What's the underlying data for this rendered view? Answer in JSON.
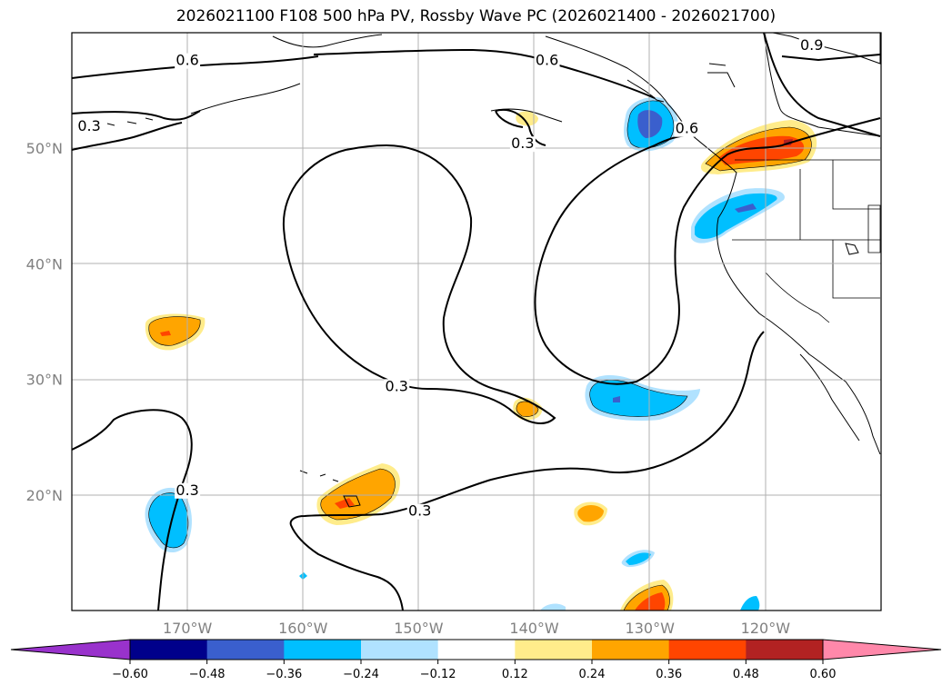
{
  "chart_data": {
    "type": "contour-map",
    "title": "2026021100 F108 500 hPa PV, Rossby Wave PC (2026021400 - 2026021700)",
    "map": {
      "lon_range": [
        -180,
        -110
      ],
      "lat_range": [
        10,
        60
      ],
      "lon_ticks": [
        -170,
        -160,
        -150,
        -140,
        -130,
        -120
      ],
      "lon_tick_labels": [
        "170°W",
        "160°W",
        "150°W",
        "140°W",
        "130°W",
        "120°W"
      ],
      "lat_ticks": [
        20,
        30,
        40,
        50
      ],
      "lat_tick_labels": [
        "20°N",
        "30°N",
        "40°N",
        "50°N"
      ],
      "grid": true
    },
    "contour_labels": [
      {
        "text": "0.6",
        "lon": -170.0,
        "lat": 57.2
      },
      {
        "text": "0.6",
        "lon": -138.9,
        "lat": 57.2
      },
      {
        "text": "0.9",
        "lon": -116.0,
        "lat": 58.5
      },
      {
        "text": "0.3",
        "lon": -178.5,
        "lat": 51.5
      },
      {
        "text": "0.3",
        "lon": -141.0,
        "lat": 50.0
      },
      {
        "text": "0.6",
        "lon": -126.8,
        "lat": 51.3
      },
      {
        "text": "0.3",
        "lon": -151.9,
        "lat": 29.0
      },
      {
        "text": "0.3",
        "lon": -149.9,
        "lat": 18.2
      },
      {
        "text": "0.3",
        "lon": -170.0,
        "lat": 20.0
      }
    ],
    "colorbar": {
      "levels": [
        -0.6,
        -0.48,
        -0.36,
        -0.24,
        -0.12,
        0.12,
        0.24,
        0.36,
        0.48,
        0.6
      ],
      "tick_labels": [
        "−0.60",
        "−0.48",
        "−0.36",
        "−0.24",
        "−0.12",
        "0.12",
        "0.24",
        "0.36",
        "0.48",
        "0.60"
      ],
      "colors": [
        "#9932cc",
        "#00008b",
        "#3a5fcd",
        "#00bfff",
        "#b0e2ff",
        "#ffffff",
        "#ffec8b",
        "#ffa500",
        "#ff4500",
        "#b22222",
        "#ff88aa"
      ],
      "extend": "both"
    }
  }
}
